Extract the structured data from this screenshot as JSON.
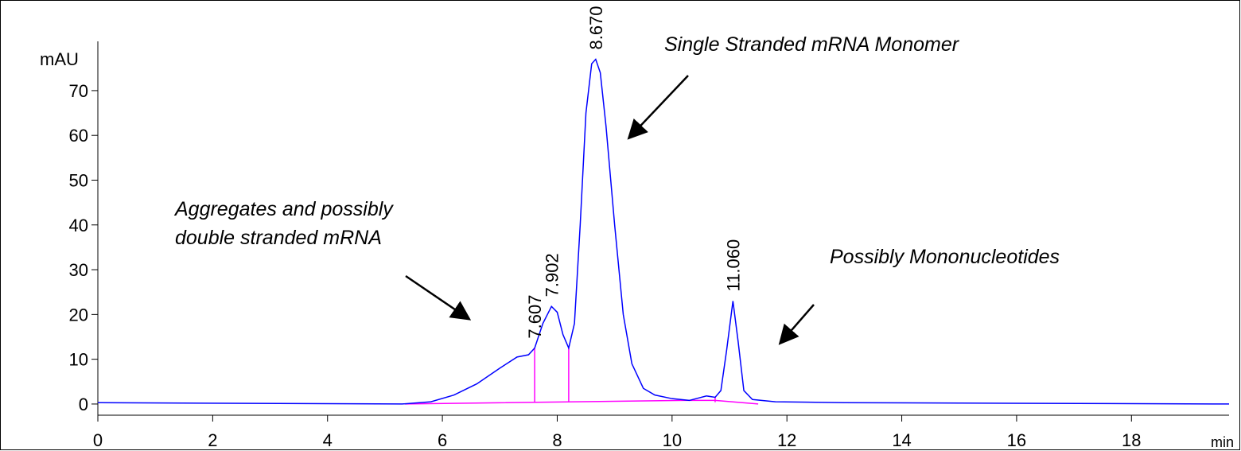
{
  "chart_data": {
    "type": "line",
    "x_label": "min",
    "y_label": "mAU",
    "color": "#0000ff",
    "baseline_color": "#ff00ff",
    "x": [
      0,
      5.3,
      5.8,
      6.2,
      6.6,
      7.0,
      7.3,
      7.5,
      7.607,
      7.75,
      7.9,
      8.0,
      8.1,
      8.2,
      8.3,
      8.4,
      8.5,
      8.6,
      8.67,
      8.75,
      8.85,
      9.0,
      9.15,
      9.3,
      9.5,
      9.7,
      10.0,
      10.3,
      10.6,
      10.75,
      10.85,
      10.95,
      11.06,
      11.15,
      11.25,
      11.4,
      11.8,
      13,
      19.7
    ],
    "values": [
      0.3,
      0,
      0.5,
      2,
      4.5,
      8,
      10.5,
      11,
      12.5,
      18,
      21.8,
      20.5,
      15.5,
      12.5,
      18,
      40,
      65,
      76,
      77,
      74,
      62,
      40,
      20,
      9,
      3.5,
      2,
      1.2,
      0.8,
      1.8,
      1.5,
      3,
      12,
      23,
      14,
      3,
      1,
      0.5,
      0.3,
      0
    ],
    "baseline": {
      "x": [
        5.35,
        10.2,
        10.75,
        11.5
      ],
      "values": [
        0,
        0.8,
        0.8,
        0
      ]
    },
    "drop_lines": [
      7.607,
      8.2,
      10.75
    ],
    "peak_labels": [
      {
        "value": 7.607,
        "label": "7.607"
      },
      {
        "value": 7.902,
        "label": "7.902"
      },
      {
        "value": 8.67,
        "label": "8.670"
      },
      {
        "value": 11.06,
        "label": "11.060"
      }
    ],
    "annotations": [
      "Single Stranded mRNA Monomer",
      "Aggregates and possibly",
      "double stranded mRNA",
      "Possibly Mononucleotides"
    ],
    "xlim": [
      0,
      19.7
    ],
    "ylim": [
      -2.5,
      81
    ],
    "xticks": [
      0,
      2,
      4,
      6,
      8,
      10,
      12,
      14,
      16,
      18
    ],
    "yticks": [
      0,
      10,
      20,
      30,
      40,
      50,
      60,
      70
    ]
  }
}
